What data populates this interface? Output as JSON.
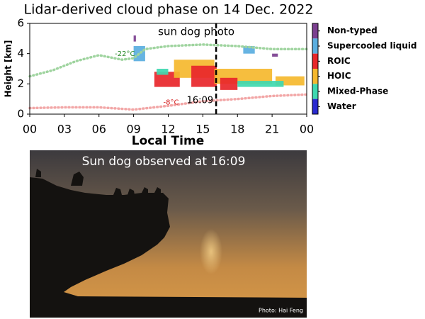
{
  "chart_data": {
    "type": "cloud-phase",
    "title": "Lidar-derived cloud phase on 14 Dec. 2022",
    "y_label": "Height [km]",
    "x_label": "Local Time",
    "xlim": [
      0,
      24
    ],
    "ylim": [
      0,
      6
    ],
    "xticks": [
      {
        "value": 0,
        "label": "00"
      },
      {
        "value": 3,
        "label": "03"
      },
      {
        "value": 6,
        "label": "06"
      },
      {
        "value": 9,
        "label": "09"
      },
      12,
      15,
      18,
      21,
      {
        "value": 24,
        "label": "00"
      }
    ],
    "yticks": [
      0,
      2,
      4,
      6
    ],
    "legend": [
      {
        "name": "Non-typed",
        "color": "#7b3f8f"
      },
      {
        "name": "Supercooled liquid",
        "color": "#5aaee0"
      },
      {
        "name": "ROIC",
        "color": "#e8262a"
      },
      {
        "name": "HOIC",
        "color": "#f5b82e"
      },
      {
        "name": "Mixed-Phase",
        "color": "#3ed8b0"
      },
      {
        "name": "Water",
        "color": "#2a2ad0"
      }
    ],
    "regions": [
      {
        "phase": "ROIC",
        "x": [
          10.8,
          13
        ],
        "y": [
          1.8,
          2.8
        ]
      },
      {
        "phase": "HOIC",
        "x": [
          12.5,
          16
        ],
        "y": [
          2.4,
          3.6
        ]
      },
      {
        "phase": "ROIC",
        "x": [
          14,
          16.2
        ],
        "y": [
          1.8,
          3.2
        ]
      },
      {
        "phase": "HOIC",
        "x": [
          16,
          21
        ],
        "y": [
          2,
          3
        ]
      },
      {
        "phase": "ROIC",
        "x": [
          16.5,
          18
        ],
        "y": [
          1.6,
          2.4
        ]
      },
      {
        "phase": "HOIC",
        "x": [
          21.3,
          23.8
        ],
        "y": [
          1.9,
          2.5
        ]
      },
      {
        "phase": "Mixed-Phase",
        "x": [
          11,
          12
        ],
        "y": [
          2.6,
          3
        ]
      },
      {
        "phase": "Mixed-Phase",
        "x": [
          18,
          22
        ],
        "y": [
          1.8,
          2.2
        ]
      },
      {
        "phase": "Supercooled liquid",
        "x": [
          9,
          10
        ],
        "y": [
          3.5,
          4.5
        ]
      },
      {
        "phase": "Supercooled liquid",
        "x": [
          18.5,
          19.5
        ],
        "y": [
          4,
          4.5
        ]
      },
      {
        "phase": "Non-typed",
        "x": [
          9,
          9.2
        ],
        "y": [
          4.8,
          5.2
        ]
      },
      {
        "phase": "Non-typed",
        "x": [
          21,
          21.5
        ],
        "y": [
          3.8,
          4
        ]
      }
    ],
    "series": [
      {
        "name": "-22°C",
        "color": "#9fd49f",
        "x": [
          0,
          2,
          4,
          6,
          8,
          9,
          10,
          12,
          15,
          18,
          21,
          24
        ],
        "values": [
          2.5,
          2.9,
          3.5,
          3.9,
          3.6,
          3.7,
          4.3,
          4.5,
          4.6,
          4.5,
          4.3,
          4.3
        ]
      },
      {
        "name": "-8°C",
        "color": "#f2a6a6",
        "x": [
          0,
          3,
          6,
          9,
          12,
          15,
          18,
          21,
          24
        ],
        "values": [
          0.4,
          0.45,
          0.45,
          0.3,
          0.55,
          0.85,
          1,
          1.2,
          1.3
        ]
      }
    ],
    "marker": {
      "x": 16.15,
      "text": "sun dog photo",
      "time_label": "16:09"
    }
  },
  "photo": {
    "caption": "Sun dog observed at 16:09",
    "credit": "Photo: Hai Feng"
  }
}
